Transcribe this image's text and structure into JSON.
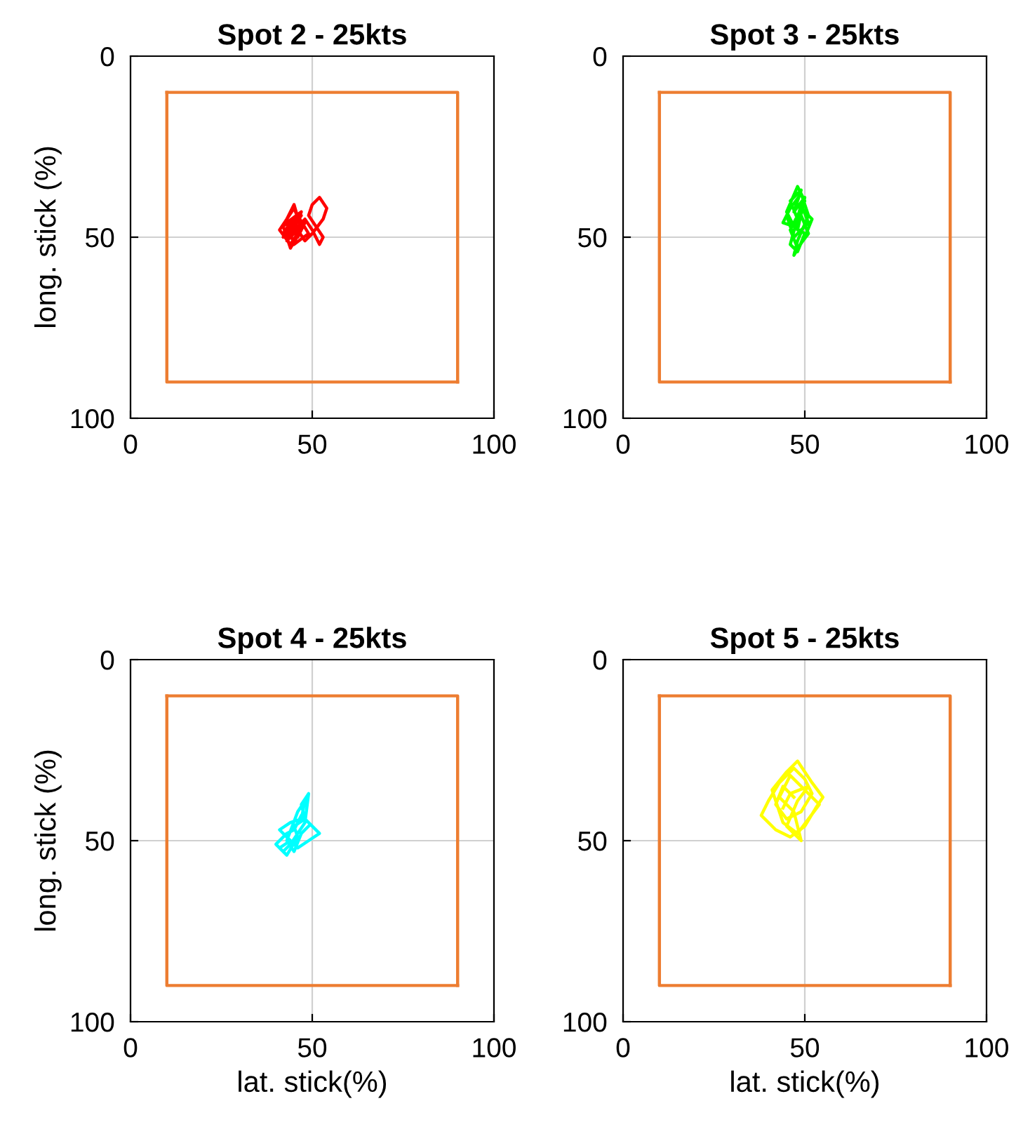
{
  "chart_data": [
    {
      "type": "line",
      "title": "Spot 2 - 25kts",
      "ylabel": "long. stick (%)",
      "xlim": [
        0,
        100
      ],
      "ylim": [
        100,
        0
      ],
      "xticks": [
        0,
        50,
        100
      ],
      "yticks": [
        0,
        50,
        100
      ],
      "grid": true,
      "series": [
        {
          "color": "#ed7d31",
          "x": [
            10,
            90,
            90
          ],
          "values": [
            10,
            10,
            90
          ]
        },
        {
          "color": "#ed7d31",
          "x": [
            90,
            10,
            10
          ],
          "values": [
            90,
            90,
            10
          ]
        },
        {
          "color": "#ff0000",
          "x": [
            44,
            42,
            46,
            43,
            47,
            45,
            41,
            44,
            48,
            46,
            43,
            45,
            47,
            44,
            42,
            46,
            49,
            45,
            43,
            47,
            44,
            46,
            48,
            50,
            52,
            53,
            51,
            49,
            50,
            52,
            54,
            53,
            50,
            48,
            46,
            44,
            42,
            45,
            47,
            44
          ],
          "values": [
            46,
            49,
            44,
            51,
            47,
            42,
            48,
            52,
            46,
            50,
            45,
            41,
            48,
            53,
            47,
            44,
            49,
            52,
            46,
            43,
            50,
            47,
            45,
            48,
            52,
            50,
            47,
            44,
            41,
            39,
            42,
            45,
            49,
            51,
            48,
            46,
            50,
            47,
            44,
            48
          ]
        }
      ]
    },
    {
      "type": "line",
      "title": "Spot 3 - 25kts",
      "xlim": [
        0,
        100
      ],
      "ylim": [
        100,
        0
      ],
      "xticks": [
        0,
        50,
        100
      ],
      "yticks": [
        0,
        50,
        100
      ],
      "grid": true,
      "series": [
        {
          "color": "#ed7d31",
          "x": [
            10,
            90,
            90
          ],
          "values": [
            10,
            10,
            90
          ]
        },
        {
          "color": "#ed7d31",
          "x": [
            90,
            10,
            10
          ],
          "values": [
            90,
            90,
            10
          ]
        },
        {
          "color": "#00ff00",
          "x": [
            48,
            46,
            49,
            47,
            50,
            48,
            45,
            47,
            51,
            49,
            46,
            48,
            50,
            47,
            44,
            46,
            49,
            51,
            48,
            47,
            50,
            52,
            49,
            47,
            45,
            48,
            50,
            46,
            48,
            51,
            49,
            47
          ],
          "values": [
            45,
            40,
            37,
            43,
            39,
            48,
            44,
            50,
            46,
            41,
            52,
            54,
            49,
            47,
            46,
            42,
            38,
            44,
            51,
            55,
            50,
            45,
            42,
            47,
            43,
            36,
            40,
            48,
            53,
            49,
            44,
            46
          ]
        }
      ]
    },
    {
      "type": "line",
      "title": "Spot 4 - 25kts",
      "xlabel": "lat. stick(%)",
      "ylabel": "long. stick (%)",
      "xlim": [
        0,
        100
      ],
      "ylim": [
        100,
        0
      ],
      "xticks": [
        0,
        50,
        100
      ],
      "yticks": [
        0,
        50,
        100
      ],
      "grid": true,
      "series": [
        {
          "color": "#ed7d31",
          "x": [
            10,
            90,
            90
          ],
          "values": [
            10,
            10,
            90
          ]
        },
        {
          "color": "#ed7d31",
          "x": [
            90,
            10,
            10
          ],
          "values": [
            90,
            90,
            10
          ]
        },
        {
          "color": "#00ffff",
          "x": [
            44,
            41,
            43,
            46,
            45,
            48,
            47,
            49,
            48,
            46,
            44,
            42,
            40,
            43,
            45,
            47,
            50,
            52,
            49,
            46,
            43,
            41,
            44,
            47,
            48,
            46,
            43,
            45,
            47,
            49
          ],
          "values": [
            50,
            52,
            54,
            49,
            46,
            44,
            40,
            37,
            45,
            48,
            51,
            53,
            51,
            48,
            47,
            43,
            46,
            48,
            50,
            52,
            49,
            47,
            45,
            44,
            39,
            42,
            50,
            53,
            48,
            46
          ]
        }
      ]
    },
    {
      "type": "line",
      "title": "Spot 5 - 25kts",
      "xlabel": "lat. stick(%)",
      "xlim": [
        0,
        100
      ],
      "ylim": [
        100,
        0
      ],
      "xticks": [
        0,
        50,
        100
      ],
      "yticks": [
        0,
        50,
        100
      ],
      "grid": true,
      "series": [
        {
          "color": "#ed7d31",
          "x": [
            10,
            90,
            90
          ],
          "values": [
            10,
            10,
            90
          ]
        },
        {
          "color": "#ed7d31",
          "x": [
            90,
            10,
            10
          ],
          "values": [
            90,
            90,
            10
          ]
        },
        {
          "color": "#ffff00",
          "x": [
            47,
            44,
            42,
            45,
            49,
            52,
            50,
            47,
            43,
            40,
            38,
            42,
            46,
            50,
            53,
            55,
            52,
            48,
            45,
            41,
            44,
            48,
            51,
            54,
            50,
            46,
            43,
            47,
            49,
            45,
            48,
            51,
            46,
            44
          ],
          "values": [
            38,
            35,
            40,
            44,
            42,
            37,
            33,
            30,
            34,
            39,
            43,
            47,
            49,
            46,
            41,
            38,
            34,
            28,
            31,
            36,
            45,
            48,
            44,
            40,
            36,
            32,
            38,
            42,
            50,
            46,
            39,
            35,
            37,
            41
          ]
        }
      ]
    }
  ]
}
